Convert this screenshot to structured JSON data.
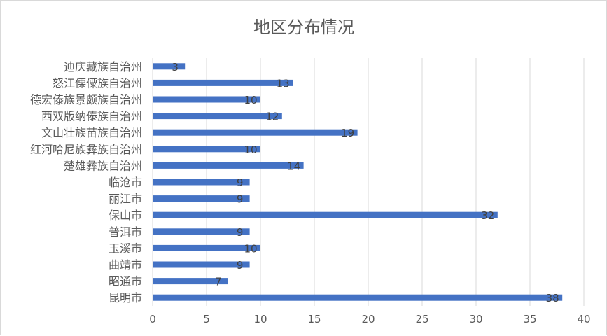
{
  "chart_data": {
    "type": "bar",
    "orientation": "horizontal",
    "title": "地区分布情况",
    "categories": [
      "迪庆藏族自治州",
      "怒江傈僳族自治州",
      "德宏傣族景颇族自治州",
      "西双版纳傣族自治州",
      "文山壮族苗族自治州",
      "红河哈尼族彝族自治州",
      "楚雄彝族自治州",
      "临沧市",
      "丽江市",
      "保山市",
      "普洱市",
      "玉溪市",
      "曲靖市",
      "昭通市",
      "昆明市"
    ],
    "values": [
      3,
      13,
      10,
      12,
      19,
      10,
      14,
      9,
      9,
      32,
      9,
      10,
      9,
      7,
      38
    ],
    "xlim": [
      0,
      40
    ],
    "xticks": [
      "0",
      "5",
      "10",
      "15",
      "20",
      "25",
      "30",
      "35",
      "40"
    ],
    "grid": true,
    "legend": "none",
    "bar_color": "#4472C4",
    "data_labels": true
  }
}
